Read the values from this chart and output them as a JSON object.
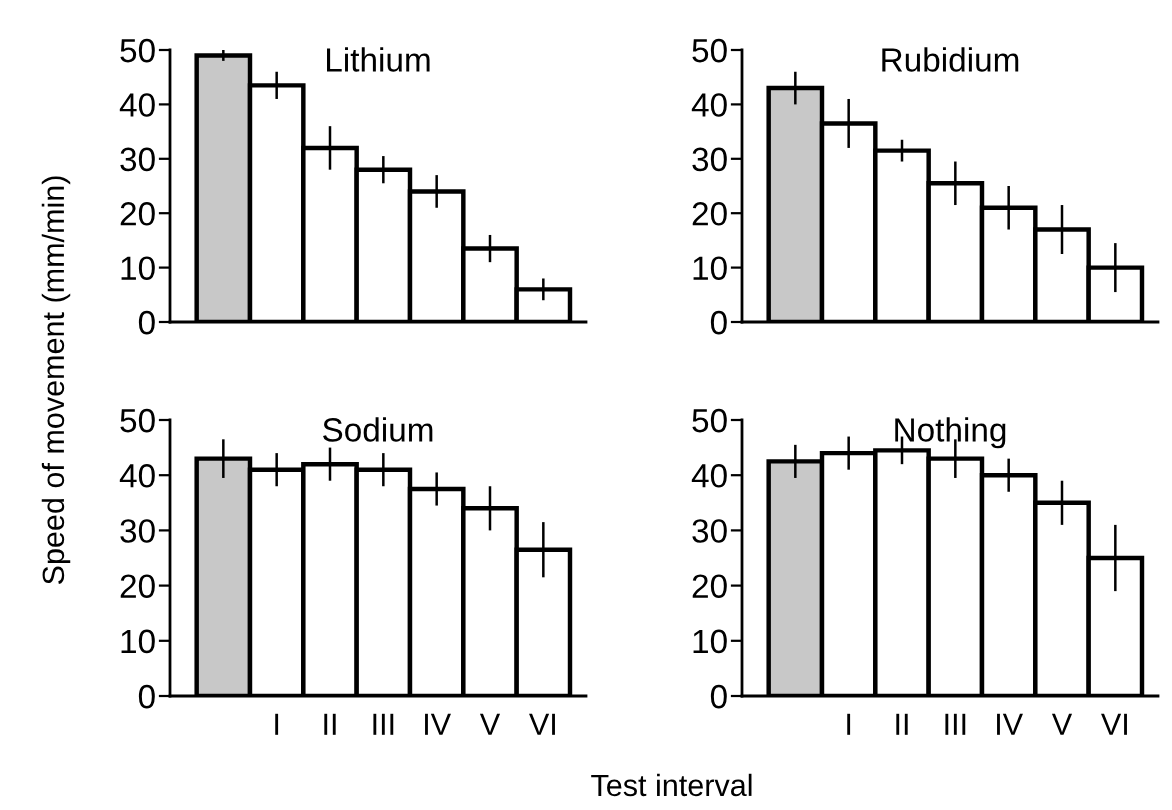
{
  "chart_data": [
    {
      "type": "bar",
      "title": "Lithium",
      "ylabel": "Speed of movement (mm/min)",
      "categories": [
        null,
        "I",
        "II",
        "III",
        "IV",
        "V",
        "VI"
      ],
      "values": [
        49,
        43.5,
        32,
        28,
        24,
        13.5,
        6
      ],
      "errors": [
        1,
        2.5,
        4,
        2.5,
        3,
        2.5,
        2
      ],
      "colors": [
        "#c8c8c8",
        "#ffffff",
        "#ffffff",
        "#ffffff",
        "#ffffff",
        "#ffffff",
        "#ffffff"
      ],
      "ylim": [
        0,
        50
      ],
      "yticks": [
        0,
        10,
        20,
        30,
        40,
        50
      ],
      "tick_labels": "y"
    },
    {
      "type": "bar",
      "title": "Rubidium",
      "categories": [
        null,
        "I",
        "II",
        "III",
        "IV",
        "V",
        "VI"
      ],
      "values": [
        43,
        36.5,
        31.5,
        25.5,
        21,
        17,
        10
      ],
      "errors": [
        3,
        4.5,
        2,
        4,
        4,
        4.5,
        4.5
      ],
      "colors": [
        "#c8c8c8",
        "#ffffff",
        "#ffffff",
        "#ffffff",
        "#ffffff",
        "#ffffff",
        "#ffffff"
      ],
      "ylim": [
        0,
        50
      ],
      "yticks": [
        0,
        10,
        20,
        30,
        40,
        50
      ],
      "tick_labels": "y"
    },
    {
      "type": "bar",
      "title": "Sodium",
      "xlabel": "Test interval",
      "categories": [
        null,
        "I",
        "II",
        "III",
        "IV",
        "V",
        "VI"
      ],
      "values": [
        43,
        41,
        42,
        41,
        37.5,
        34,
        26.5
      ],
      "errors": [
        3.5,
        3,
        3,
        3,
        3,
        4,
        5
      ],
      "colors": [
        "#c8c8c8",
        "#ffffff",
        "#ffffff",
        "#ffffff",
        "#ffffff",
        "#ffffff",
        "#ffffff"
      ],
      "ylim": [
        0,
        50
      ],
      "yticks": [
        0,
        10,
        20,
        30,
        40,
        50
      ]
    },
    {
      "type": "bar",
      "title": "Nothing",
      "categories": [
        null,
        "I",
        "II",
        "III",
        "IV",
        "V",
        "VI"
      ],
      "values": [
        42.5,
        44,
        44.5,
        43,
        40,
        35,
        25
      ],
      "errors": [
        3,
        3,
        2.5,
        3.5,
        3,
        4,
        6
      ],
      "colors": [
        "#c8c8c8",
        "#ffffff",
        "#ffffff",
        "#ffffff",
        "#ffffff",
        "#ffffff",
        "#ffffff"
      ],
      "ylim": [
        0,
        50
      ],
      "yticks": [
        0,
        10,
        20,
        30,
        40,
        50
      ]
    }
  ]
}
